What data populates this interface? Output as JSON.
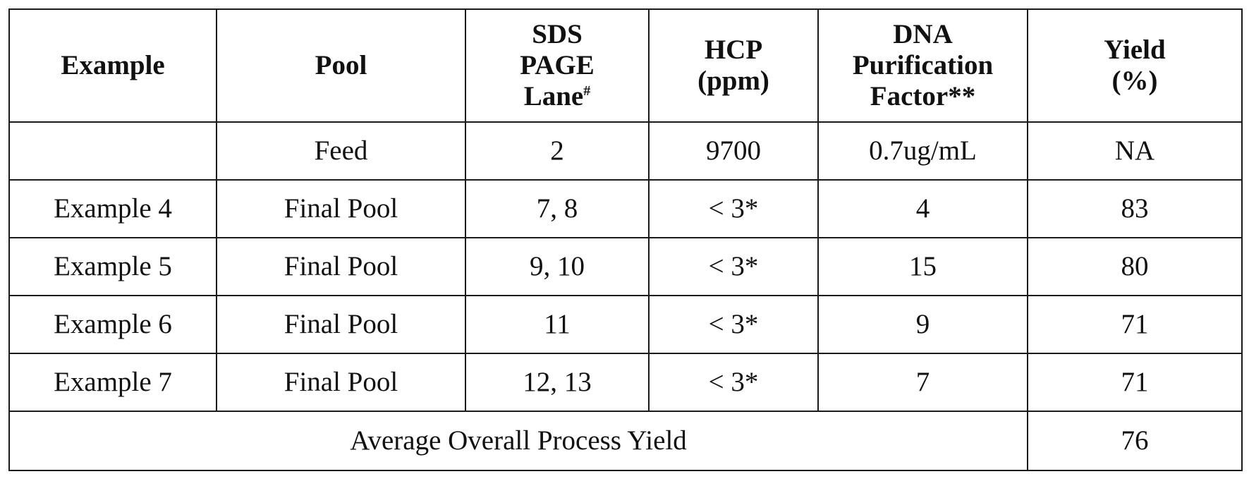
{
  "table": {
    "headers": {
      "example": "Example",
      "pool": "Pool",
      "sds": {
        "line1": "SDS",
        "line2": "PAGE",
        "line3": "Lane",
        "mark": "#"
      },
      "hcp": {
        "line1": "HCP",
        "line2": "(ppm)"
      },
      "dna": {
        "line1": "DNA",
        "line2": "Purification",
        "line3": "Factor**"
      },
      "yield": {
        "line1": "Yield",
        "line2": "(%)"
      }
    },
    "rows": [
      {
        "example": "",
        "pool": "Feed",
        "sds": "2",
        "hcp": "9700",
        "dna": "0.7ug/mL",
        "yield": "NA"
      },
      {
        "example": "Example 4",
        "pool": "Final Pool",
        "sds": "7, 8",
        "hcp": "< 3*",
        "dna": "4",
        "yield": "83"
      },
      {
        "example": "Example 5",
        "pool": "Final Pool",
        "sds": "9, 10",
        "hcp": "< 3*",
        "dna": "15",
        "yield": "80"
      },
      {
        "example": "Example 6",
        "pool": "Final Pool",
        "sds": "11",
        "hcp": "< 3*",
        "dna": "9",
        "yield": "71"
      },
      {
        "example": "Example 7",
        "pool": "Final Pool",
        "sds": "12, 13",
        "hcp": "< 3*",
        "dna": "7",
        "yield": "71"
      }
    ],
    "average": {
      "label": "Average Overall Process Yield",
      "value": "76"
    }
  }
}
